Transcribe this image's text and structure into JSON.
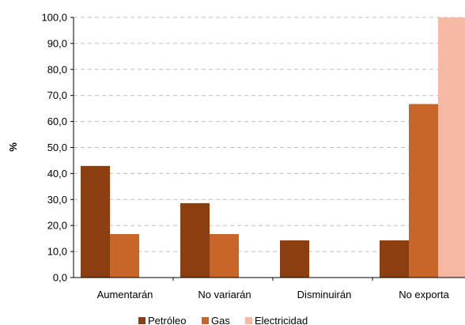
{
  "chart_data": {
    "type": "bar",
    "ylabel": "%",
    "ylim": [
      0,
      100
    ],
    "ytick_step": 10,
    "ytick_labels": [
      "0,0",
      "10,0",
      "20,0",
      "30,0",
      "40,0",
      "50,0",
      "60,0",
      "70,0",
      "80,0",
      "90,0",
      "100,0"
    ],
    "grid": "horizontal dashed",
    "legend_position": "bottom",
    "categories": [
      "Aumentarán",
      "No variarán",
      "Disminuirán",
      "No exporta"
    ],
    "series": [
      {
        "name": "Petróleo",
        "color": "#8b3f10",
        "values": [
          42.9,
          28.6,
          14.3,
          14.3
        ]
      },
      {
        "name": "Gas",
        "color": "#c8662a",
        "values": [
          16.7,
          16.7,
          0,
          66.7
        ]
      },
      {
        "name": "Electricidad",
        "color": "#f4b8a4",
        "values": [
          0,
          0,
          0,
          100.0
        ]
      }
    ]
  }
}
